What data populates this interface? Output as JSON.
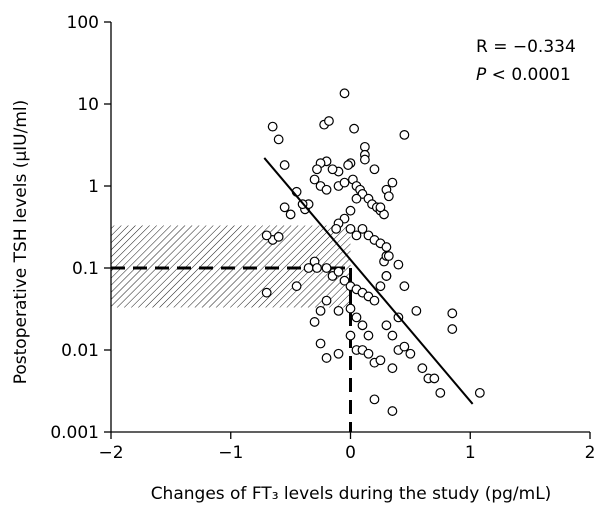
{
  "chart_data": {
    "type": "scatter",
    "xlabel": "Changes of FT₃ levels  during the study (pg/mL)",
    "ylabel": "Postoperative TSH levels (μIU/ml)",
    "xlim": [
      -2,
      2
    ],
    "ylim": [
      0.001,
      100
    ],
    "y_scale": "log",
    "x_ticks": [
      -2,
      -1,
      0,
      1,
      2
    ],
    "x_tick_labels": [
      "−2",
      "−1",
      "0",
      "1",
      "2"
    ],
    "y_ticks": [
      0.001,
      0.01,
      0.1,
      1,
      10,
      100
    ],
    "y_tick_labels": [
      "0.001",
      "0.01",
      "0.1",
      "1",
      "10",
      "100"
    ],
    "grid": false,
    "annotations": {
      "r_text": "R = −0.334",
      "p_label": "P",
      "p_text": " < 0.0001"
    },
    "regression_line": {
      "x": [
        -0.72,
        1.02
      ],
      "y": [
        2.2,
        0.0022
      ]
    },
    "reference": {
      "tsh_level": 0.1,
      "ft3_change": 0,
      "shaded_band": {
        "x": [
          -2,
          0
        ],
        "y": [
          0.033,
          0.33
        ]
      }
    },
    "points": [
      [
        -0.65,
        5.3
      ],
      [
        -0.6,
        3.7
      ],
      [
        -0.55,
        1.8
      ],
      [
        -0.45,
        0.85
      ],
      [
        -0.38,
        0.52
      ],
      [
        -0.35,
        0.6
      ],
      [
        -0.22,
        5.6
      ],
      [
        -0.18,
        6.2
      ],
      [
        -0.05,
        13.5
      ],
      [
        0.03,
        5.0
      ],
      [
        0.12,
        3.0
      ],
      [
        0.12,
        2.4
      ],
      [
        0.12,
        2.1
      ],
      [
        0.2,
        1.6
      ],
      [
        0.0,
        1.9
      ],
      [
        -0.02,
        1.8
      ],
      [
        -0.1,
        1.5
      ],
      [
        -0.15,
        1.6
      ],
      [
        -0.2,
        2.0
      ],
      [
        -0.25,
        1.9
      ],
      [
        -0.28,
        1.6
      ],
      [
        -0.3,
        1.2
      ],
      [
        -0.25,
        1.0
      ],
      [
        -0.2,
        0.9
      ],
      [
        -0.1,
        1.0
      ],
      [
        -0.05,
        1.1
      ],
      [
        0.02,
        1.2
      ],
      [
        0.05,
        1.0
      ],
      [
        0.08,
        0.9
      ],
      [
        0.1,
        0.8
      ],
      [
        0.15,
        0.7
      ],
      [
        0.18,
        0.6
      ],
      [
        0.22,
        0.55
      ],
      [
        0.25,
        0.5
      ],
      [
        0.28,
        0.45
      ],
      [
        0.3,
        0.9
      ],
      [
        0.35,
        1.1
      ],
      [
        0.32,
        0.75
      ],
      [
        0.05,
        0.7
      ],
      [
        0.0,
        0.5
      ],
      [
        -0.05,
        0.4
      ],
      [
        -0.1,
        0.35
      ],
      [
        -0.12,
        0.3
      ],
      [
        0.0,
        0.3
      ],
      [
        0.05,
        0.25
      ],
      [
        0.1,
        0.3
      ],
      [
        0.15,
        0.25
      ],
      [
        0.2,
        0.22
      ],
      [
        0.25,
        0.2
      ],
      [
        0.3,
        0.18
      ],
      [
        -0.65,
        0.22
      ],
      [
        -0.6,
        0.24
      ],
      [
        -0.7,
        0.25
      ],
      [
        -0.7,
        0.05
      ],
      [
        -0.45,
        0.06
      ],
      [
        -0.3,
        0.12
      ],
      [
        -0.35,
        0.1
      ],
      [
        -0.28,
        0.1
      ],
      [
        -0.2,
        0.1
      ],
      [
        -0.15,
        0.08
      ],
      [
        -0.1,
        0.09
      ],
      [
        -0.05,
        0.07
      ],
      [
        0.0,
        0.06
      ],
      [
        0.05,
        0.055
      ],
      [
        0.1,
        0.05
      ],
      [
        0.15,
        0.045
      ],
      [
        0.2,
        0.04
      ],
      [
        -0.2,
        0.04
      ],
      [
        -0.25,
        0.03
      ],
      [
        -0.1,
        0.03
      ],
      [
        0.0,
        0.032
      ],
      [
        0.05,
        0.025
      ],
      [
        0.1,
        0.02
      ],
      [
        0.15,
        0.015
      ],
      [
        -0.3,
        0.022
      ],
      [
        -0.25,
        0.012
      ],
      [
        -0.2,
        0.008
      ],
      [
        -0.1,
        0.009
      ],
      [
        0.0,
        0.015
      ],
      [
        0.05,
        0.01
      ],
      [
        0.1,
        0.01
      ],
      [
        0.15,
        0.009
      ],
      [
        0.2,
        0.007
      ],
      [
        0.25,
        0.0075
      ],
      [
        0.35,
        0.006
      ],
      [
        0.4,
        0.01
      ],
      [
        0.45,
        0.011
      ],
      [
        0.5,
        0.009
      ],
      [
        0.6,
        0.006
      ],
      [
        0.65,
        0.0045
      ],
      [
        0.7,
        0.0045
      ],
      [
        0.75,
        0.003
      ],
      [
        0.85,
        0.028
      ],
      [
        0.85,
        0.018
      ],
      [
        1.08,
        0.003
      ],
      [
        0.2,
        0.0025
      ],
      [
        0.35,
        0.0018
      ],
      [
        0.45,
        0.06
      ],
      [
        0.4,
        0.025
      ],
      [
        0.3,
        0.02
      ],
      [
        0.35,
        0.015
      ],
      [
        0.55,
        0.03
      ],
      [
        0.25,
        0.06
      ],
      [
        0.3,
        0.08
      ],
      [
        0.28,
        0.12
      ],
      [
        0.3,
        0.14
      ],
      [
        0.4,
        0.11
      ],
      [
        0.45,
        4.2
      ],
      [
        0.3,
        0.08
      ],
      [
        0.25,
        0.55
      ],
      [
        0.32,
        0.14
      ],
      [
        -0.5,
        0.45
      ],
      [
        -0.55,
        0.55
      ],
      [
        -0.4,
        0.6
      ]
    ]
  }
}
